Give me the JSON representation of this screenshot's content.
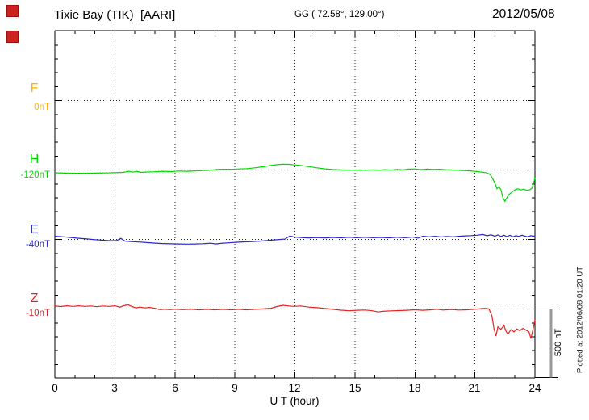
{
  "header": {
    "title": "Tixie Bay (TIK)  [AARI]",
    "coordinates": "GG ( 72.58°, 129.00°)",
    "date": "2012/05/08"
  },
  "watermark": "Plotted at 2012/06/08 01:20 UT",
  "chart_data": {
    "type": "line",
    "station": "Tixie Bay (TIK) [AARI]",
    "date": "2012/05/08",
    "coordinates": "GG ( 72.58°, 129.00°)",
    "xlabel": "U T (hour)",
    "x_range": [
      0,
      24
    ],
    "x_tick_labels": [
      "0",
      "3",
      "6",
      "9",
      "12",
      "15",
      "18",
      "21",
      "24"
    ],
    "x_major_tick_hours": 3,
    "x_minor_tick_hours": 1,
    "grid": "dotted",
    "legend_position": "left",
    "scale_bar": {
      "label": "500 nT",
      "nT": 500
    },
    "series": [
      {
        "name": "F",
        "baseline_label": "0nT",
        "baseline_nT": 0,
        "color": "#FFB400",
        "data_plotted": false,
        "points": []
      },
      {
        "name": "H",
        "baseline_label": "-120nT",
        "baseline_nT": -120,
        "color": "#00D900",
        "data_plotted": true,
        "points": [
          [
            0,
            -140
          ],
          [
            0.5,
            -142
          ],
          [
            1,
            -143
          ],
          [
            1.5,
            -143
          ],
          [
            2,
            -142
          ],
          [
            2.5,
            -141
          ],
          [
            3,
            -139
          ],
          [
            3.4,
            -137
          ],
          [
            3.7,
            -129
          ],
          [
            3.9,
            -135
          ],
          [
            4.1,
            -130
          ],
          [
            4.3,
            -137
          ],
          [
            4.6,
            -134
          ],
          [
            5,
            -132
          ],
          [
            5.4,
            -129
          ],
          [
            5.8,
            -131
          ],
          [
            6.2,
            -127
          ],
          [
            6.6,
            -129
          ],
          [
            7,
            -126
          ],
          [
            7.4,
            -123
          ],
          [
            7.8,
            -121
          ],
          [
            8.1,
            -116
          ],
          [
            8.4,
            -114
          ],
          [
            8.8,
            -115
          ],
          [
            9.2,
            -112
          ],
          [
            9.6,
            -110
          ],
          [
            10,
            -104
          ],
          [
            10.4,
            -96
          ],
          [
            10.8,
            -87
          ],
          [
            11.1,
            -81
          ],
          [
            11.4,
            -78
          ],
          [
            11.7,
            -79
          ],
          [
            12,
            -83
          ],
          [
            12.3,
            -87
          ],
          [
            12.7,
            -95
          ],
          [
            13.1,
            -104
          ],
          [
            13.5,
            -111
          ],
          [
            13.9,
            -116
          ],
          [
            14.3,
            -119
          ],
          [
            14.7,
            -121
          ],
          [
            15.1,
            -120
          ],
          [
            15.5,
            -122
          ],
          [
            15.9,
            -118
          ],
          [
            16.2,
            -121
          ],
          [
            16.5,
            -117
          ],
          [
            16.8,
            -120
          ],
          [
            17.1,
            -116
          ],
          [
            17.4,
            -119
          ],
          [
            17.7,
            -113
          ],
          [
            18,
            -112
          ],
          [
            18.3,
            -117
          ],
          [
            18.6,
            -113
          ],
          [
            18.9,
            -116
          ],
          [
            19.2,
            -114
          ],
          [
            19.5,
            -117
          ],
          [
            19.8,
            -119
          ],
          [
            20.1,
            -121
          ],
          [
            20.4,
            -123
          ],
          [
            20.7,
            -125
          ],
          [
            21,
            -129
          ],
          [
            21.3,
            -134
          ],
          [
            21.55,
            -139
          ],
          [
            21.7,
            -146
          ],
          [
            21.8,
            -160
          ],
          [
            21.9,
            -185
          ],
          [
            22,
            -215
          ],
          [
            22.1,
            -255
          ],
          [
            22.2,
            -240
          ],
          [
            22.3,
            -262
          ],
          [
            22.4,
            -320
          ],
          [
            22.5,
            -345
          ],
          [
            22.6,
            -318
          ],
          [
            22.7,
            -296
          ],
          [
            22.85,
            -278
          ],
          [
            23,
            -262
          ],
          [
            23.15,
            -255
          ],
          [
            23.3,
            -263
          ],
          [
            23.45,
            -257
          ],
          [
            23.6,
            -266
          ],
          [
            23.75,
            -262
          ],
          [
            23.85,
            -250
          ],
          [
            23.95,
            -205
          ],
          [
            24,
            -175
          ]
        ]
      },
      {
        "name": "E",
        "baseline_label": "-40nT",
        "baseline_nT": -40,
        "color": "#2828CC",
        "data_plotted": true,
        "points": [
          [
            0,
            -17
          ],
          [
            0.4,
            -20
          ],
          [
            0.8,
            -26
          ],
          [
            1.2,
            -31
          ],
          [
            1.6,
            -36
          ],
          [
            2,
            -41
          ],
          [
            2.4,
            -45
          ],
          [
            2.8,
            -49
          ],
          [
            3.1,
            -47
          ],
          [
            3.3,
            -32
          ],
          [
            3.5,
            -51
          ],
          [
            3.8,
            -55
          ],
          [
            4.2,
            -58
          ],
          [
            4.6,
            -62
          ],
          [
            5,
            -66
          ],
          [
            5.4,
            -69
          ],
          [
            5.8,
            -71
          ],
          [
            6.2,
            -72
          ],
          [
            6.6,
            -73
          ],
          [
            7,
            -72
          ],
          [
            7.4,
            -70
          ],
          [
            7.8,
            -67
          ],
          [
            8.05,
            -72
          ],
          [
            8.3,
            -68
          ],
          [
            8.7,
            -64
          ],
          [
            9.1,
            -60
          ],
          [
            9.5,
            -57
          ],
          [
            9.9,
            -55
          ],
          [
            10.3,
            -51
          ],
          [
            10.7,
            -46
          ],
          [
            11.1,
            -42
          ],
          [
            11.5,
            -37
          ],
          [
            11.75,
            -15
          ],
          [
            11.95,
            -22
          ],
          [
            12.3,
            -26
          ],
          [
            12.7,
            -29
          ],
          [
            13.1,
            -26
          ],
          [
            13.5,
            -29
          ],
          [
            13.9,
            -25
          ],
          [
            14.3,
            -28
          ],
          [
            14.7,
            -24
          ],
          [
            15.1,
            -27
          ],
          [
            15.5,
            -24
          ],
          [
            15.9,
            -27
          ],
          [
            16.3,
            -25
          ],
          [
            16.7,
            -28
          ],
          [
            17.1,
            -24
          ],
          [
            17.5,
            -27
          ],
          [
            17.9,
            -22
          ],
          [
            18.15,
            -30
          ],
          [
            18.4,
            -16
          ],
          [
            18.7,
            -21
          ],
          [
            19,
            -17
          ],
          [
            19.3,
            -22
          ],
          [
            19.6,
            -18
          ],
          [
            19.9,
            -21
          ],
          [
            20.2,
            -17
          ],
          [
            20.5,
            -14
          ],
          [
            20.8,
            -12
          ],
          [
            21.1,
            -9
          ],
          [
            21.4,
            -4
          ],
          [
            21.6,
            -13
          ],
          [
            21.8,
            -6
          ],
          [
            22,
            -16
          ],
          [
            22.15,
            -7
          ],
          [
            22.3,
            -18
          ],
          [
            22.45,
            -9
          ],
          [
            22.6,
            -19
          ],
          [
            22.75,
            -10
          ],
          [
            22.9,
            -21
          ],
          [
            23.05,
            -12
          ],
          [
            23.2,
            -18
          ],
          [
            23.35,
            -9
          ],
          [
            23.5,
            -16
          ],
          [
            23.65,
            -21
          ],
          [
            23.8,
            -12
          ],
          [
            23.9,
            -17
          ],
          [
            24,
            -14
          ]
        ]
      },
      {
        "name": "Z",
        "baseline_label": "-10nT",
        "baseline_nT": -10,
        "color": "#E62222",
        "data_plotted": true,
        "points": [
          [
            0,
            12
          ],
          [
            0.3,
            8
          ],
          [
            0.6,
            13
          ],
          [
            0.9,
            9
          ],
          [
            1.2,
            13
          ],
          [
            1.5,
            9
          ],
          [
            1.8,
            12
          ],
          [
            2.1,
            7
          ],
          [
            2.4,
            12
          ],
          [
            2.7,
            9
          ],
          [
            3,
            13
          ],
          [
            3.25,
            4
          ],
          [
            3.45,
            14
          ],
          [
            3.65,
            20
          ],
          [
            3.85,
            9
          ],
          [
            4.05,
            -2
          ],
          [
            4.25,
            4
          ],
          [
            4.5,
            -2
          ],
          [
            4.75,
            2
          ],
          [
            5,
            -5
          ],
          [
            5.25,
            -14
          ],
          [
            5.5,
            -11
          ],
          [
            5.75,
            -14
          ],
          [
            6,
            -11
          ],
          [
            6.4,
            -14
          ],
          [
            6.8,
            -11
          ],
          [
            7.2,
            -15
          ],
          [
            7.6,
            -12
          ],
          [
            8,
            -15
          ],
          [
            8.4,
            -12
          ],
          [
            8.8,
            -15
          ],
          [
            9.2,
            -12
          ],
          [
            9.6,
            -15
          ],
          [
            10,
            -12
          ],
          [
            10.4,
            -9
          ],
          [
            10.8,
            -4
          ],
          [
            11.1,
            8
          ],
          [
            11.4,
            17
          ],
          [
            11.7,
            12
          ],
          [
            11.95,
            9
          ],
          [
            12.3,
            12
          ],
          [
            12.7,
            4
          ],
          [
            13.1,
            0
          ],
          [
            13.5,
            -6
          ],
          [
            13.9,
            -12
          ],
          [
            14.3,
            -18
          ],
          [
            14.7,
            -22
          ],
          [
            15.1,
            -19
          ],
          [
            15.5,
            -17
          ],
          [
            15.9,
            -23
          ],
          [
            16.15,
            -31
          ],
          [
            16.4,
            -26
          ],
          [
            16.8,
            -23
          ],
          [
            17.2,
            -21
          ],
          [
            17.6,
            -19
          ],
          [
            18,
            -15
          ],
          [
            18.4,
            -19
          ],
          [
            18.8,
            -15
          ],
          [
            19.1,
            -11
          ],
          [
            19.4,
            -17
          ],
          [
            19.8,
            -13
          ],
          [
            20.2,
            -17
          ],
          [
            20.6,
            -15
          ],
          [
            21,
            -11
          ],
          [
            21.3,
            -7
          ],
          [
            21.5,
            -5
          ],
          [
            21.7,
            -9
          ],
          [
            21.85,
            -60
          ],
          [
            21.95,
            -150
          ],
          [
            22.05,
            -205
          ],
          [
            22.15,
            -138
          ],
          [
            22.3,
            -156
          ],
          [
            22.45,
            -128
          ],
          [
            22.55,
            -170
          ],
          [
            22.65,
            -190
          ],
          [
            22.8,
            -158
          ],
          [
            22.95,
            -174
          ],
          [
            23.1,
            -153
          ],
          [
            23.25,
            -166
          ],
          [
            23.4,
            -149
          ],
          [
            23.55,
            -161
          ],
          [
            23.7,
            -174
          ],
          [
            23.8,
            -222
          ],
          [
            23.9,
            -158
          ],
          [
            24,
            -90
          ]
        ]
      }
    ]
  }
}
